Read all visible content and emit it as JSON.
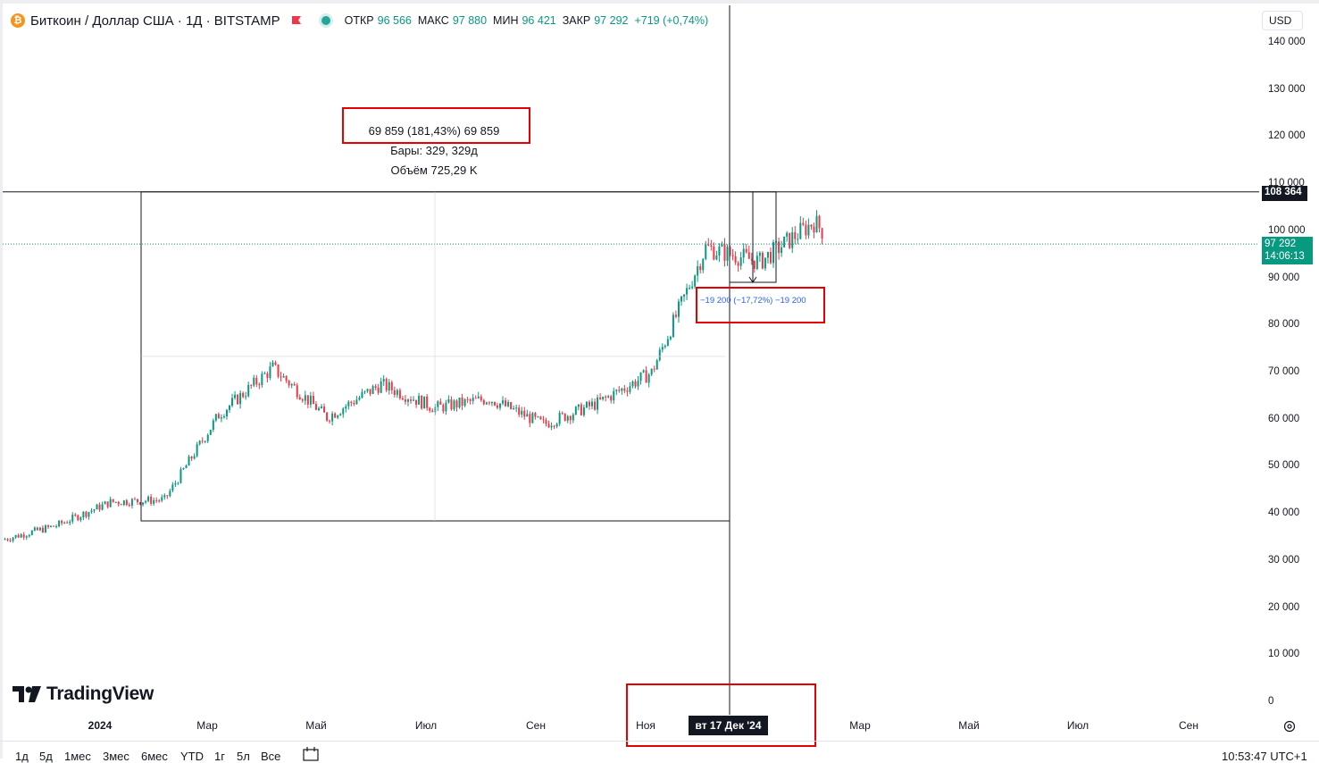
{
  "legend": {
    "symbol": "Биткоин / Доллар США · 1Д · BITSTAMP",
    "open_label": "ОТКР",
    "open": "96 566",
    "high_label": "МАКС",
    "high": "97 880",
    "low_label": "МИН",
    "low": "96 421",
    "close_label": "ЗАКР",
    "close": "97 292",
    "change": "+719 (+0,74%)"
  },
  "currency": "USD",
  "price_axis": [
    "140 000",
    "130 000",
    "120 000",
    "110 000",
    "100 000",
    "90 000",
    "80 000",
    "70 000",
    "60 000",
    "50 000",
    "40 000",
    "30 000",
    "20 000",
    "10 000",
    "0"
  ],
  "crosshair_price": "108 364",
  "last_price": "97 292",
  "countdown": "14:06:13",
  "time_axis": [
    {
      "label": "2024",
      "year": true
    },
    {
      "label": "Мар"
    },
    {
      "label": "Май"
    },
    {
      "label": "Июл"
    },
    {
      "label": "Сен"
    },
    {
      "label": "Ноя"
    },
    {
      "label": "Мар"
    },
    {
      "label": "Май"
    },
    {
      "label": "Июл"
    },
    {
      "label": "Сен"
    }
  ],
  "crosshair_date": "вт 17 Дек '24",
  "measure_main": {
    "line1": "69 859 (181,43%) 69 859",
    "line2": "Бары: 329, 329д",
    "line3": "Объём 725,29 K"
  },
  "measure_small": "−19 200 (−17,72%) −19 200",
  "logo": "TradingView",
  "ranges": [
    "1д",
    "5д",
    "1мес",
    "3мес",
    "6мес",
    "YTD",
    "1г",
    "5л",
    "Все"
  ],
  "clock": "10:53:47 UTC+1",
  "colors": {
    "up": "#089981",
    "down": "#f23645",
    "last_price_bg": "#089981",
    "annotation_red": "#e60000",
    "measure_blue": "#2962ff"
  },
  "chart_data": {
    "type": "candlestick",
    "symbol": "BTCUSD",
    "interval": "1D",
    "ylim": [
      0,
      140000
    ],
    "x": [
      "2023-10",
      "2023-11",
      "2023-12",
      "2024-01",
      "2024-02",
      "2024-03",
      "2024-04",
      "2024-05",
      "2024-06",
      "2024-07",
      "2024-08",
      "2024-09",
      "2024-10",
      "2024-11",
      "2024-12",
      "2025-01",
      "2025-02"
    ],
    "close_approx": [
      34500,
      37500,
      42500,
      43000,
      61000,
      71000,
      60500,
      67500,
      62500,
      64500,
      59000,
      63500,
      70000,
      96500,
      93500,
      102000,
      97292
    ],
    "measure_range": {
      "from_price": 38505,
      "to_price": 108364,
      "change": 69859,
      "change_pct": 181.43,
      "bars": 329
    },
    "measure_small": {
      "change": -19200,
      "change_pct": -17.72
    }
  }
}
